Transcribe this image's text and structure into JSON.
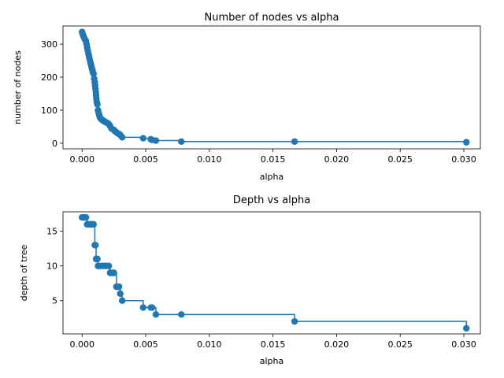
{
  "chart_data": [
    {
      "type": "line",
      "title": "Number of nodes vs alpha",
      "xlabel": "alpha",
      "ylabel": "number of nodes",
      "drawstyle": "steps-post",
      "markers": true,
      "color": "#1f77b4",
      "xlim": [
        -0.0015,
        0.0313
      ],
      "ylim": [
        -17,
        355
      ],
      "xticks": [
        0.0,
        0.005,
        0.01,
        0.015,
        0.02,
        0.025,
        0.03
      ],
      "xtick_labels": [
        "0.000",
        "0.005",
        "0.010",
        "0.015",
        "0.020",
        "0.025",
        "0.030"
      ],
      "yticks": [
        0,
        100,
        200,
        300
      ],
      "ytick_labels": [
        "0",
        "100",
        "200",
        "300"
      ],
      "x": [
        0.0,
        5e-05,
        0.0001,
        0.00015,
        0.0002,
        0.0003,
        0.00035,
        0.0004,
        0.00045,
        0.0005,
        0.00055,
        0.0006,
        0.00065,
        0.0007,
        0.00075,
        0.0008,
        0.00085,
        0.0009,
        0.00095,
        0.001,
        0.00102,
        0.00105,
        0.00108,
        0.0011,
        0.00112,
        0.00115,
        0.0012,
        0.00125,
        0.0013,
        0.00135,
        0.0014,
        0.0015,
        0.0016,
        0.0017,
        0.0018,
        0.0019,
        0.002,
        0.0021,
        0.0022,
        0.0023,
        0.0025,
        0.0026,
        0.0027,
        0.0028,
        0.0029,
        0.003,
        0.00315,
        0.0048,
        0.0054,
        0.0055,
        0.0058,
        0.0078,
        0.0167,
        0.0302
      ],
      "y": [
        337,
        330,
        325,
        320,
        316,
        310,
        300,
        290,
        280,
        270,
        262,
        254,
        245,
        238,
        230,
        222,
        215,
        210,
        195,
        185,
        175,
        165,
        155,
        145,
        135,
        125,
        118,
        100,
        92,
        85,
        78,
        73,
        70,
        67,
        65,
        63,
        61,
        58,
        52,
        45,
        40,
        36,
        33,
        30,
        28,
        25,
        18,
        15,
        12,
        10,
        8,
        5,
        5,
        3
      ]
    },
    {
      "type": "line",
      "title": "Depth vs alpha",
      "xlabel": "alpha",
      "ylabel": "depth of tree",
      "drawstyle": "steps-post",
      "markers": true,
      "color": "#1f77b4",
      "xlim": [
        -0.0015,
        0.0313
      ],
      "ylim": [
        0.2,
        17.8
      ],
      "xticks": [
        0.0,
        0.005,
        0.01,
        0.015,
        0.02,
        0.025,
        0.03
      ],
      "xtick_labels": [
        "0.000",
        "0.005",
        "0.010",
        "0.015",
        "0.020",
        "0.025",
        "0.030"
      ],
      "yticks": [
        5,
        10,
        15
      ],
      "ytick_labels": [
        "5",
        "10",
        "15"
      ],
      "x": [
        0.0,
        0.0001,
        0.0002,
        0.0003,
        0.0004,
        0.0005,
        0.0006,
        0.0007,
        0.0008,
        0.0009,
        0.001,
        0.00105,
        0.0011,
        0.0012,
        0.00125,
        0.0013,
        0.0015,
        0.0017,
        0.0019,
        0.0021,
        0.0022,
        0.0023,
        0.0024,
        0.0025,
        0.0027,
        0.0028,
        0.0029,
        0.003,
        0.00315,
        0.0048,
        0.0054,
        0.0055,
        0.0058,
        0.0078,
        0.0167,
        0.0302
      ],
      "y": [
        17,
        17,
        17,
        17,
        16,
        16,
        16,
        16,
        16,
        16,
        13,
        13,
        11,
        11,
        10,
        10,
        10,
        10,
        10,
        10,
        9,
        9,
        9,
        9,
        7,
        7,
        7,
        6,
        5,
        4,
        4,
        4,
        3,
        3,
        2,
        1
      ]
    }
  ]
}
